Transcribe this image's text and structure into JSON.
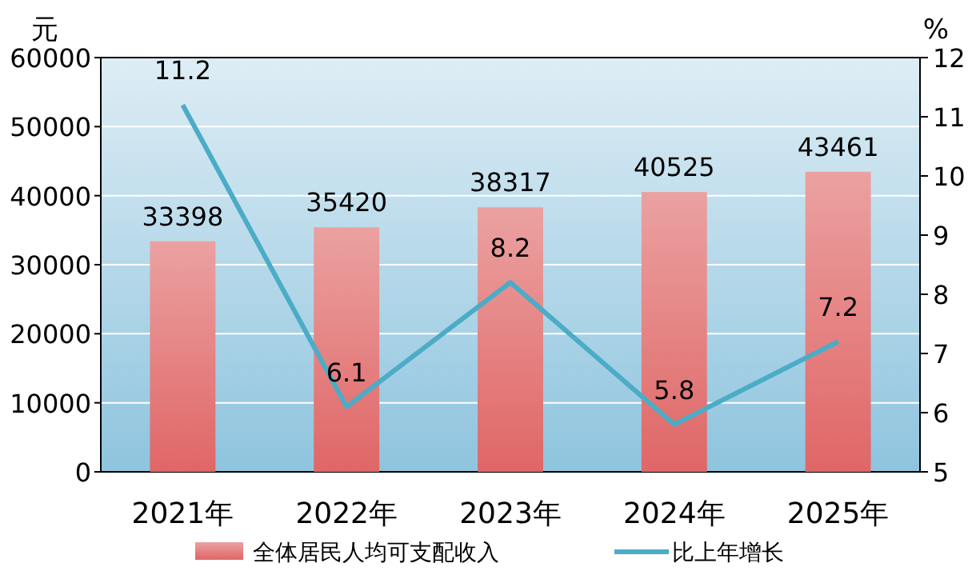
{
  "chart_data": {
    "type": "bar",
    "categories": [
      "2021年",
      "2022年",
      "2023年",
      "2024年",
      "2025年"
    ],
    "series": [
      {
        "name": "全体居民人均可支配收入",
        "color": "#e06666",
        "values": [
          33398,
          35420,
          38317,
          40525,
          43461
        ]
      },
      {
        "name": "比上年增长",
        "type": "line",
        "axis": "y2",
        "color": "#4bacc6",
        "values": [
          11.2,
          6.1,
          8.2,
          5.8,
          7.2
        ]
      }
    ],
    "ylabel": "元",
    "y2label": "%",
    "ylim": [
      0,
      60000
    ],
    "yticks": [
      0,
      10000,
      20000,
      30000,
      40000,
      50000,
      60000
    ],
    "y2lim": [
      5,
      12
    ],
    "y2ticks": [
      5,
      6,
      7,
      8,
      9,
      10,
      11,
      12
    ],
    "grid": "y",
    "legend": "bottom",
    "data_labels": true,
    "marker": "none"
  }
}
